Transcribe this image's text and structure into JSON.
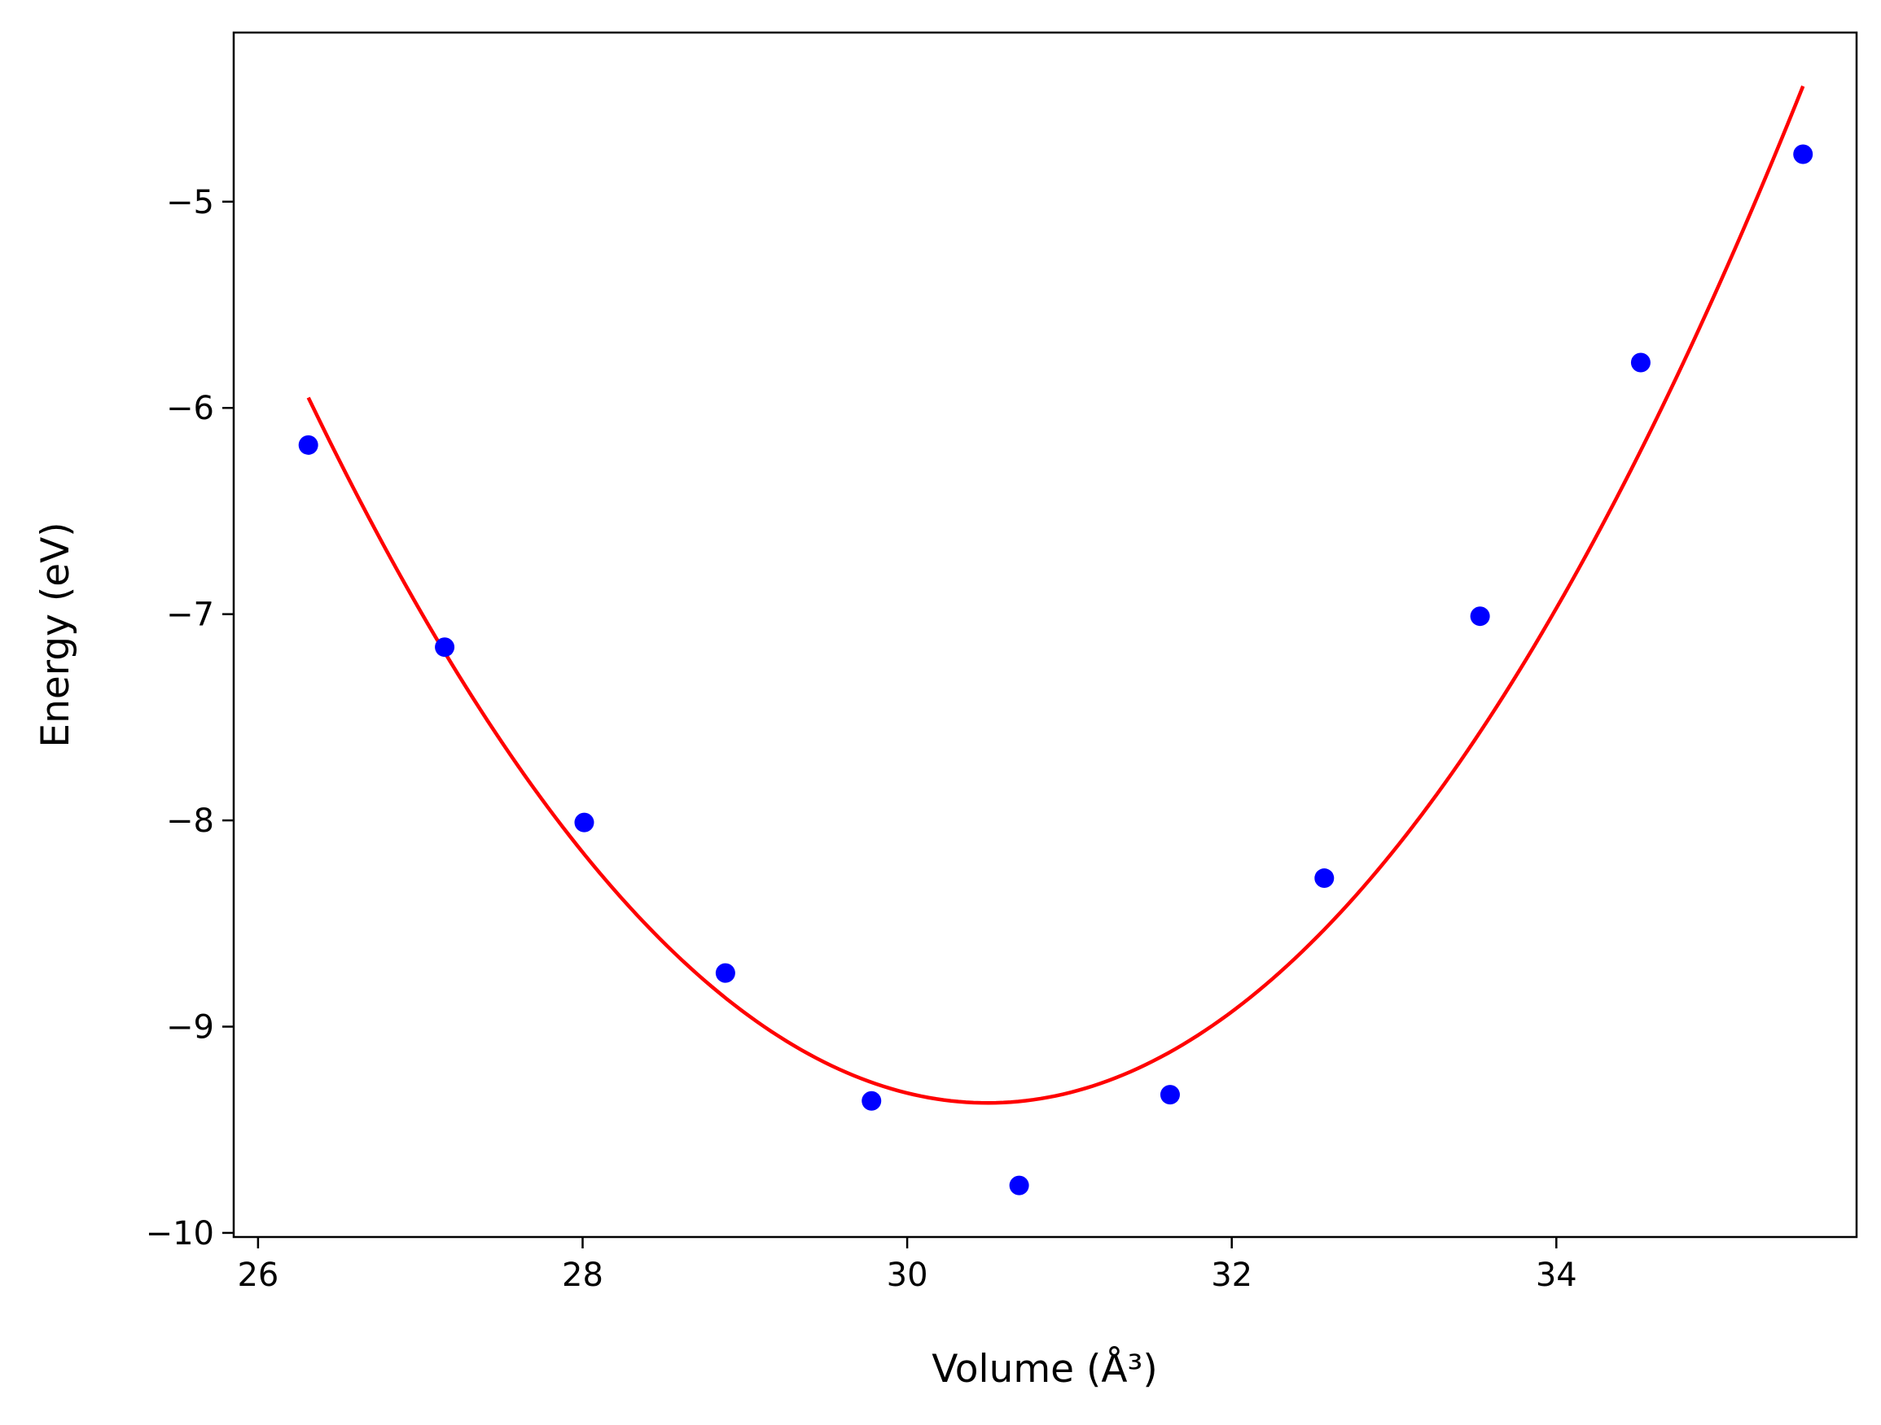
{
  "chart_data": {
    "type": "scatter",
    "xlabel": "Volume (Å³)",
    "ylabel": "Energy (eV)",
    "xlim": [
      25.85,
      35.85
    ],
    "ylim": [
      -10.02,
      -4.18
    ],
    "xticks": [
      26,
      28,
      30,
      32,
      34
    ],
    "yticks": [
      -5,
      -6,
      -7,
      -8,
      -9,
      -10
    ],
    "xtick_labels": [
      "26",
      "28",
      "30",
      "32",
      "34"
    ],
    "ytick_labels": [
      "−5",
      "−6",
      "−7",
      "−8",
      "−9",
      "−10"
    ],
    "grid": false,
    "series": [
      {
        "kind": "scatter",
        "color": "#0000ff",
        "x": [
          26.31,
          27.15,
          28.01,
          28.88,
          29.78,
          30.69,
          31.62,
          32.57,
          33.53,
          34.52,
          35.52
        ],
        "y": [
          -6.18,
          -7.16,
          -8.01,
          -8.74,
          -9.36,
          -9.77,
          -9.33,
          -8.28,
          -7.01,
          -5.78,
          -4.77
        ]
      },
      {
        "kind": "line",
        "color": "#ff0000",
        "fit_x_range": [
          26.31,
          35.52
        ],
        "fit_points": [
          [
            26.31,
            -5.95
          ],
          [
            30.27,
            -9.36
          ],
          [
            35.52,
            -4.44
          ]
        ]
      }
    ]
  }
}
